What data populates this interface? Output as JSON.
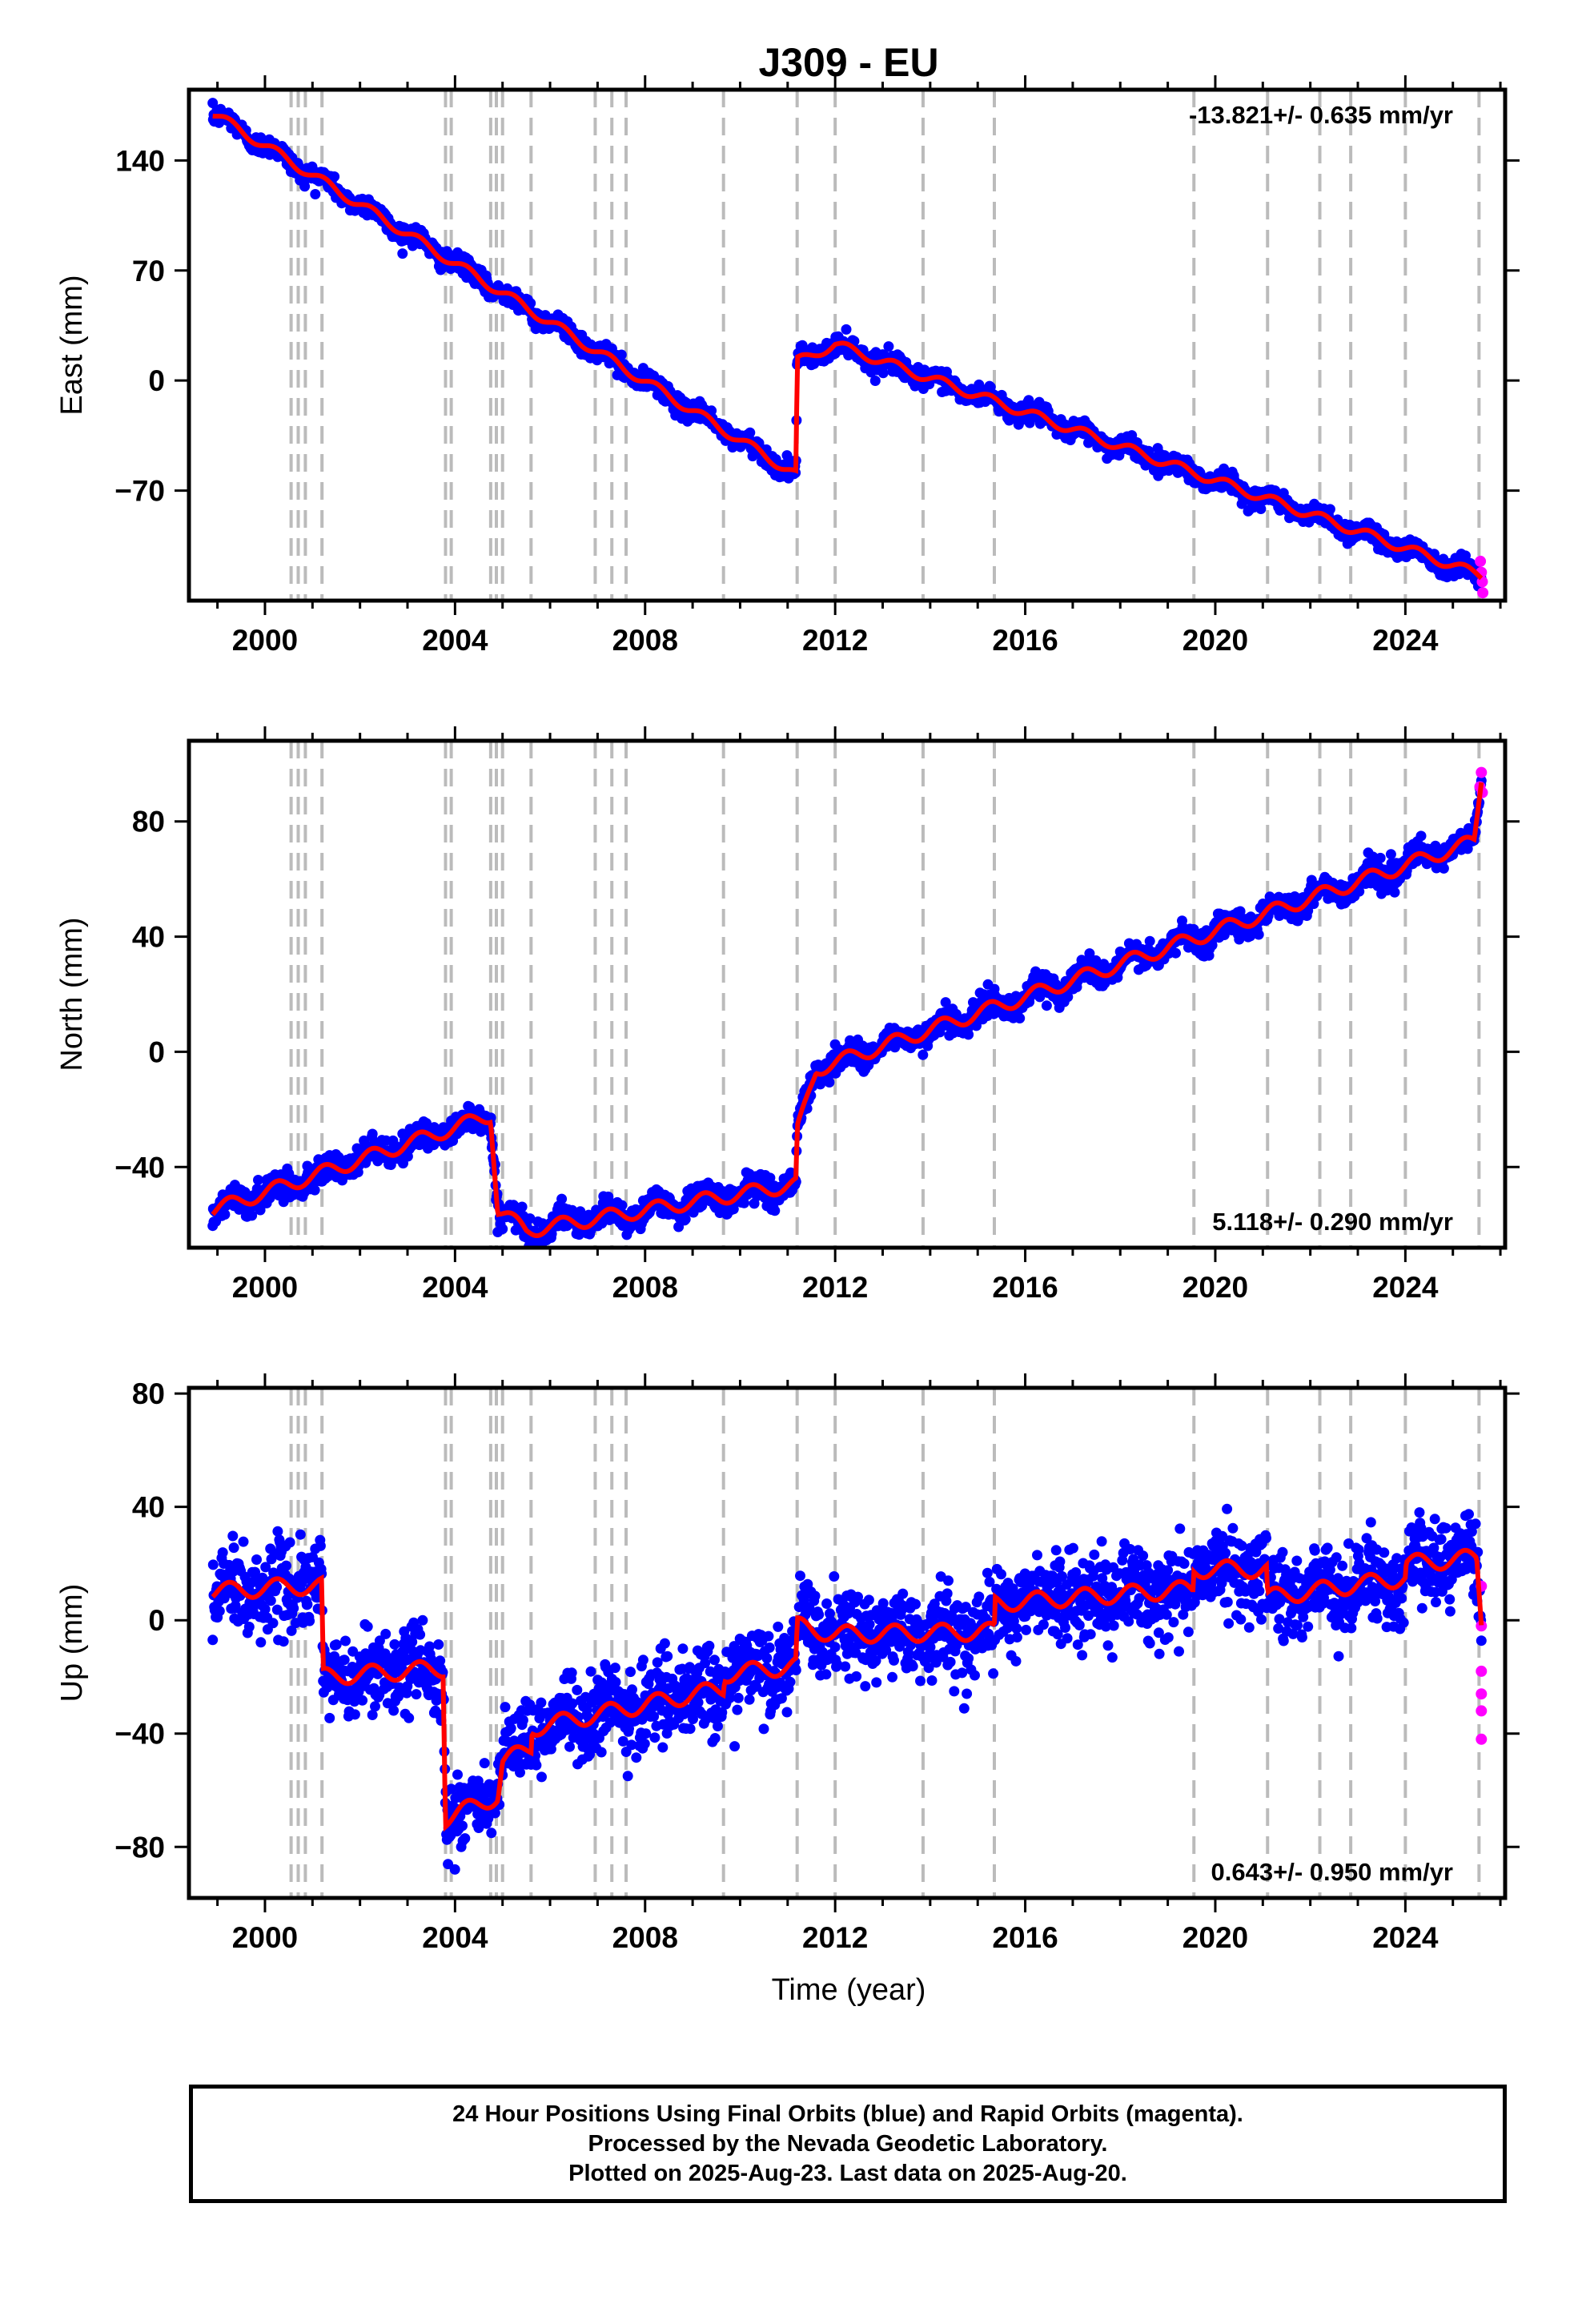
{
  "title": "J309 - EU",
  "xlabel": "Time (year)",
  "colors": {
    "final_orbits": "#0000ff",
    "rapid_orbits": "#ff00ff",
    "model": "#ff0000",
    "events": "#bbbbbb"
  },
  "footer": {
    "line1": "24 Hour Positions Using Final Orbits (blue) and Rapid Orbits (magenta).",
    "line2": "Processed by the Nevada Geodetic Laboratory.",
    "line3": "Plotted on 2025-Aug-23. Last data on 2025-Aug-20."
  },
  "chart_data": [
    {
      "type": "scatter",
      "ylabel": "East (mm)",
      "rate_label": "-13.821+/- 0.635 mm/yr",
      "rate_position": "top-right",
      "x_ticks": [
        "2000",
        "2004",
        "2008",
        "2012",
        "2016",
        "2020",
        "2024"
      ],
      "y_ticks": [
        "140",
        "70",
        "0",
        "−70"
      ],
      "xlim": [
        1998.4,
        2026.1
      ],
      "ylim": [
        -140,
        185
      ],
      "event_lines": [
        2000.55,
        2000.7,
        2000.85,
        2001.2,
        2003.8,
        2003.92,
        2004.75,
        2004.87,
        2005.0,
        2005.6,
        2006.95,
        2007.3,
        2007.6,
        2009.65,
        2011.2,
        2012.0,
        2013.85,
        2015.35,
        2019.55,
        2021.1,
        2022.2,
        2022.85,
        2024.0,
        2025.55
      ],
      "model_breakpoints": [
        {
          "x": 1998.9,
          "y": 170
        },
        {
          "x": 2011.18,
          "y": -60
        },
        {
          "x": 2011.2,
          "y": 12
        },
        {
          "x": 2012.0,
          "y": 23
        },
        {
          "x": 2025.6,
          "y": -124
        }
      ],
      "seasonal_amplitude": 3,
      "scatter_sd": 3,
      "rapid_points": [
        [
          2025.58,
          -115
        ],
        [
          2025.6,
          -122
        ],
        [
          2025.62,
          -128
        ],
        [
          2025.63,
          -135
        ]
      ]
    },
    {
      "type": "scatter",
      "ylabel": "North (mm)",
      "rate_label": "5.118+/- 0.290 mm/yr",
      "rate_position": "bottom-right",
      "x_ticks": [
        "2000",
        "2004",
        "2008",
        "2012",
        "2016",
        "2020",
        "2024"
      ],
      "y_ticks": [
        "80",
        "40",
        "0",
        "−40"
      ],
      "xlim": [
        1998.4,
        2026.1
      ],
      "ylim": [
        -68,
        108
      ],
      "event_lines": [
        2000.55,
        2000.7,
        2000.85,
        2001.2,
        2003.8,
        2003.92,
        2004.75,
        2004.87,
        2005.0,
        2005.6,
        2006.95,
        2007.3,
        2007.6,
        2009.65,
        2011.2,
        2012.0,
        2013.85,
        2015.35,
        2019.55,
        2021.1,
        2022.2,
        2022.85,
        2024.0,
        2025.55
      ],
      "model_breakpoints": [
        {
          "x": 1998.9,
          "y": -55
        },
        {
          "x": 2004.75,
          "y": -22
        },
        {
          "x": 2004.9,
          "y": -55
        },
        {
          "x": 2005.5,
          "y": -62
        },
        {
          "x": 2011.18,
          "y": -46
        },
        {
          "x": 2011.2,
          "y": -28
        },
        {
          "x": 2011.6,
          "y": -6
        },
        {
          "x": 2025.45,
          "y": 73
        },
        {
          "x": 2025.6,
          "y": 95
        }
      ],
      "seasonal_amplitude": 2.5,
      "scatter_sd": 2.2,
      "rapid_points": [
        [
          2025.57,
          92
        ],
        [
          2025.6,
          97
        ],
        [
          2025.62,
          90
        ]
      ]
    },
    {
      "type": "scatter",
      "ylabel": "Up (mm)",
      "rate_label": "0.643+/- 0.950 mm/yr",
      "rate_position": "bottom-right",
      "x_ticks": [
        "2000",
        "2004",
        "2008",
        "2012",
        "2016",
        "2020",
        "2024"
      ],
      "y_ticks": [
        "80",
        "40",
        "0",
        "−40",
        "−80"
      ],
      "xlim": [
        1998.4,
        2026.1
      ],
      "ylim": [
        -98,
        82
      ],
      "event_lines": [
        2000.55,
        2000.7,
        2000.85,
        2001.2,
        2003.8,
        2003.92,
        2004.75,
        2004.87,
        2005.0,
        2005.6,
        2006.95,
        2007.3,
        2007.6,
        2009.65,
        2011.2,
        2012.0,
        2013.85,
        2015.35,
        2019.55,
        2021.1,
        2022.2,
        2022.85,
        2024.0,
        2025.55
      ],
      "model_breakpoints": [
        {
          "x": 1998.9,
          "y": 10
        },
        {
          "x": 2000.55,
          "y": 12
        },
        {
          "x": 2001.2,
          "y": 12
        },
        {
          "x": 2001.22,
          "y": -20
        },
        {
          "x": 2003.75,
          "y": -17
        },
        {
          "x": 2003.8,
          "y": -70
        },
        {
          "x": 2004.9,
          "y": -62
        },
        {
          "x": 2005.0,
          "y": -50
        },
        {
          "x": 2005.6,
          "y": -45
        },
        {
          "x": 2005.62,
          "y": -38
        },
        {
          "x": 2009.65,
          "y": -24
        },
        {
          "x": 2009.67,
          "y": -19
        },
        {
          "x": 2011.18,
          "y": -16
        },
        {
          "x": 2011.2,
          "y": -2
        },
        {
          "x": 2012.0,
          "y": -5
        },
        {
          "x": 2015.35,
          "y": -4
        },
        {
          "x": 2015.37,
          "y": 6
        },
        {
          "x": 2019.53,
          "y": 11
        },
        {
          "x": 2019.55,
          "y": 18
        },
        {
          "x": 2021.08,
          "y": 18
        },
        {
          "x": 2021.1,
          "y": 8
        },
        {
          "x": 2024.0,
          "y": 15
        },
        {
          "x": 2024.02,
          "y": 20
        },
        {
          "x": 2025.5,
          "y": 22
        },
        {
          "x": 2025.6,
          "y": 0
        }
      ],
      "seasonal_amplitude": 3,
      "scatter_sd": 7,
      "rapid_points": [
        [
          2025.6,
          12
        ],
        [
          2025.6,
          -2
        ],
        [
          2025.6,
          -18
        ],
        [
          2025.6,
          -26
        ],
        [
          2025.6,
          -32
        ],
        [
          2025.6,
          -42
        ]
      ]
    }
  ]
}
